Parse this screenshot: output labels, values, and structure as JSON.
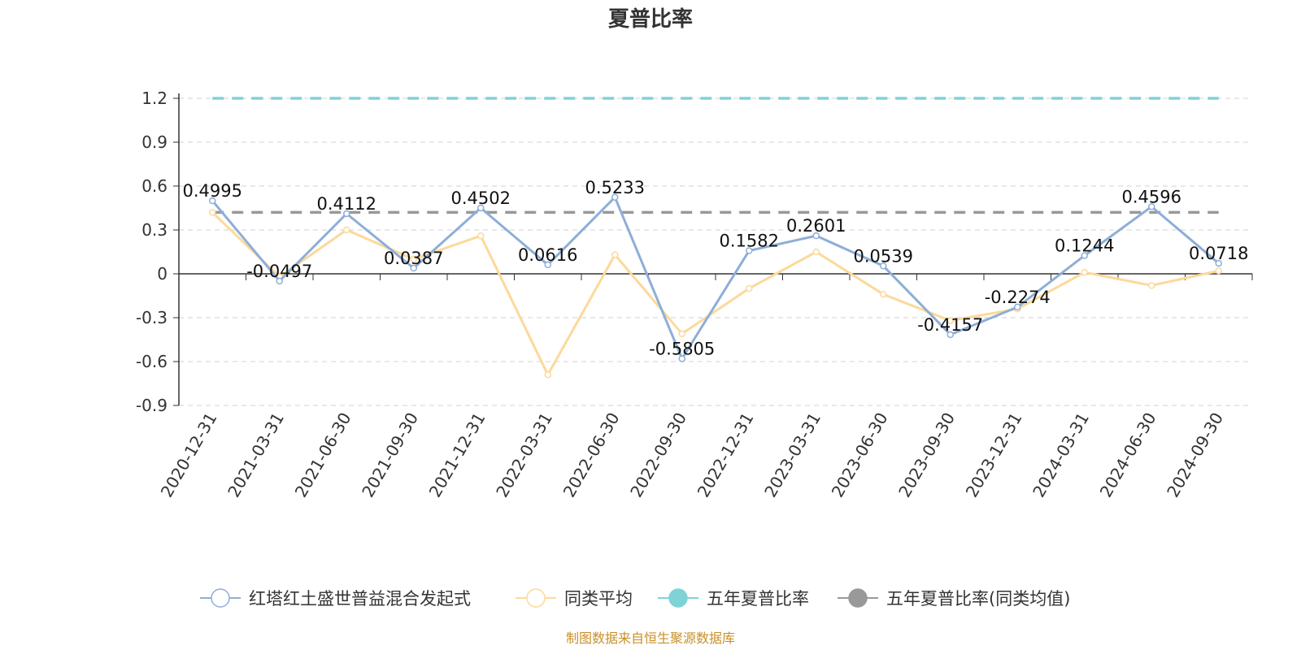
{
  "chart_data": {
    "type": "line",
    "title": "夏普比率",
    "xlabel": "",
    "ylabel": "",
    "categories": [
      "2020-12-31",
      "2021-03-31",
      "2021-06-30",
      "2021-09-30",
      "2021-12-31",
      "2022-03-31",
      "2022-06-30",
      "2022-09-30",
      "2022-12-31",
      "2023-03-31",
      "2023-06-30",
      "2023-09-30",
      "2023-12-31",
      "2024-03-31",
      "2024-06-30",
      "2024-09-30"
    ],
    "ylim": [
      -0.9,
      1.2
    ],
    "yticks": [
      1.2,
      0.9,
      0.6,
      0.3,
      0,
      -0.3,
      -0.6,
      -0.9
    ],
    "ytick_labels": [
      "1.2",
      "0.9",
      "0.6",
      "0.3",
      "0",
      "-0.3",
      "-0.6",
      "-0.9"
    ],
    "grid": true,
    "legend_position": "bottom",
    "series": [
      {
        "name": "红塔红土盛世普益混合发起式",
        "color": "#8eaed8",
        "values": [
          0.4995,
          -0.0497,
          0.4112,
          0.0387,
          0.4502,
          0.0616,
          0.5233,
          -0.5805,
          0.1582,
          0.2601,
          0.0539,
          -0.4157,
          -0.2274,
          0.1244,
          0.4596,
          0.0718
        ],
        "labels": [
          "0.4995",
          "-0.0497",
          "0.4112",
          "0.0387",
          "0.4502",
          "0.0616",
          "0.5233",
          "-0.5805",
          "0.1582",
          "0.2601",
          "0.0539",
          "-0.4157",
          "-0.2274",
          "0.1244",
          "0.4596",
          "0.0718"
        ]
      },
      {
        "name": "同类平均",
        "color": "#fcd99a",
        "values": [
          0.42,
          -0.02,
          0.3,
          0.1,
          0.26,
          -0.69,
          0.13,
          -0.41,
          -0.1,
          0.15,
          -0.14,
          -0.32,
          -0.24,
          0.01,
          -0.08,
          0.02
        ]
      },
      {
        "name": "五年夏普比率",
        "color": "#7fd3d6",
        "constant": 1.2
      },
      {
        "name": "五年夏普比率(同类均值)",
        "color": "#999999",
        "constant": 0.42
      }
    ]
  },
  "footer": {
    "source": "制图数据来自恒生聚源数据库"
  }
}
